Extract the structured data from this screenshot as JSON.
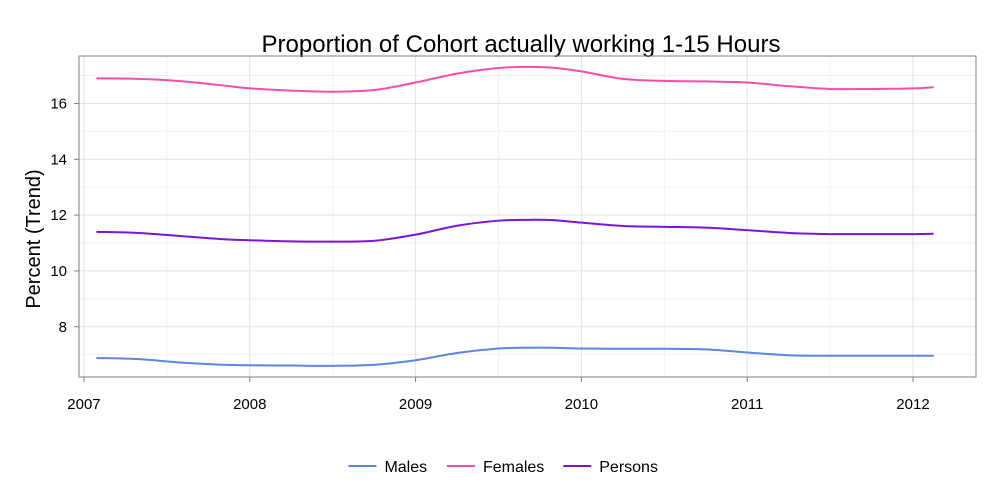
{
  "chart_data": {
    "type": "line",
    "title": "Proportion of Cohort actually working 1-15 Hours",
    "xlabel": "",
    "ylabel": "Percent (Trend)",
    "xlim": [
      2006.97,
      2012.38
    ],
    "ylim": [
      6.2,
      17.7
    ],
    "x_ticks": [
      2007,
      2008,
      2009,
      2010,
      2011,
      2012
    ],
    "x_tick_labels": [
      "2007",
      "2008",
      "2009",
      "2010",
      "2011",
      "2012"
    ],
    "y_ticks": [
      8,
      10,
      12,
      14,
      16
    ],
    "y_tick_labels": [
      "8",
      "10",
      "12",
      "14",
      "16"
    ],
    "grid": true,
    "legend_position": "bottom",
    "x": [
      2007.08,
      2007.33,
      2007.58,
      2007.83,
      2008.0,
      2008.25,
      2008.5,
      2008.75,
      2009.0,
      2009.25,
      2009.5,
      2009.67,
      2009.83,
      2010.0,
      2010.25,
      2010.5,
      2010.75,
      2011.0,
      2011.25,
      2011.5,
      2011.75,
      2012.0,
      2012.12
    ],
    "series": [
      {
        "name": "Males",
        "color": "#5b87e0",
        "values": [
          6.88,
          6.84,
          6.72,
          6.64,
          6.62,
          6.61,
          6.6,
          6.64,
          6.8,
          7.06,
          7.22,
          7.25,
          7.25,
          7.22,
          7.21,
          7.21,
          7.19,
          7.08,
          6.98,
          6.96,
          6.96,
          6.96,
          6.96
        ]
      },
      {
        "name": "Females",
        "color": "#f24fad",
        "values": [
          16.9,
          16.88,
          16.8,
          16.65,
          16.54,
          16.46,
          16.42,
          16.48,
          16.75,
          17.07,
          17.27,
          17.31,
          17.28,
          17.15,
          16.88,
          16.81,
          16.79,
          16.75,
          16.62,
          16.52,
          16.52,
          16.54,
          16.58
        ]
      },
      {
        "name": "Persons",
        "color": "#7e14d4",
        "values": [
          11.4,
          11.36,
          11.25,
          11.14,
          11.1,
          11.06,
          11.05,
          11.08,
          11.3,
          11.62,
          11.8,
          11.83,
          11.82,
          11.73,
          11.61,
          11.58,
          11.55,
          11.46,
          11.36,
          11.32,
          11.32,
          11.32,
          11.33
        ]
      }
    ]
  }
}
